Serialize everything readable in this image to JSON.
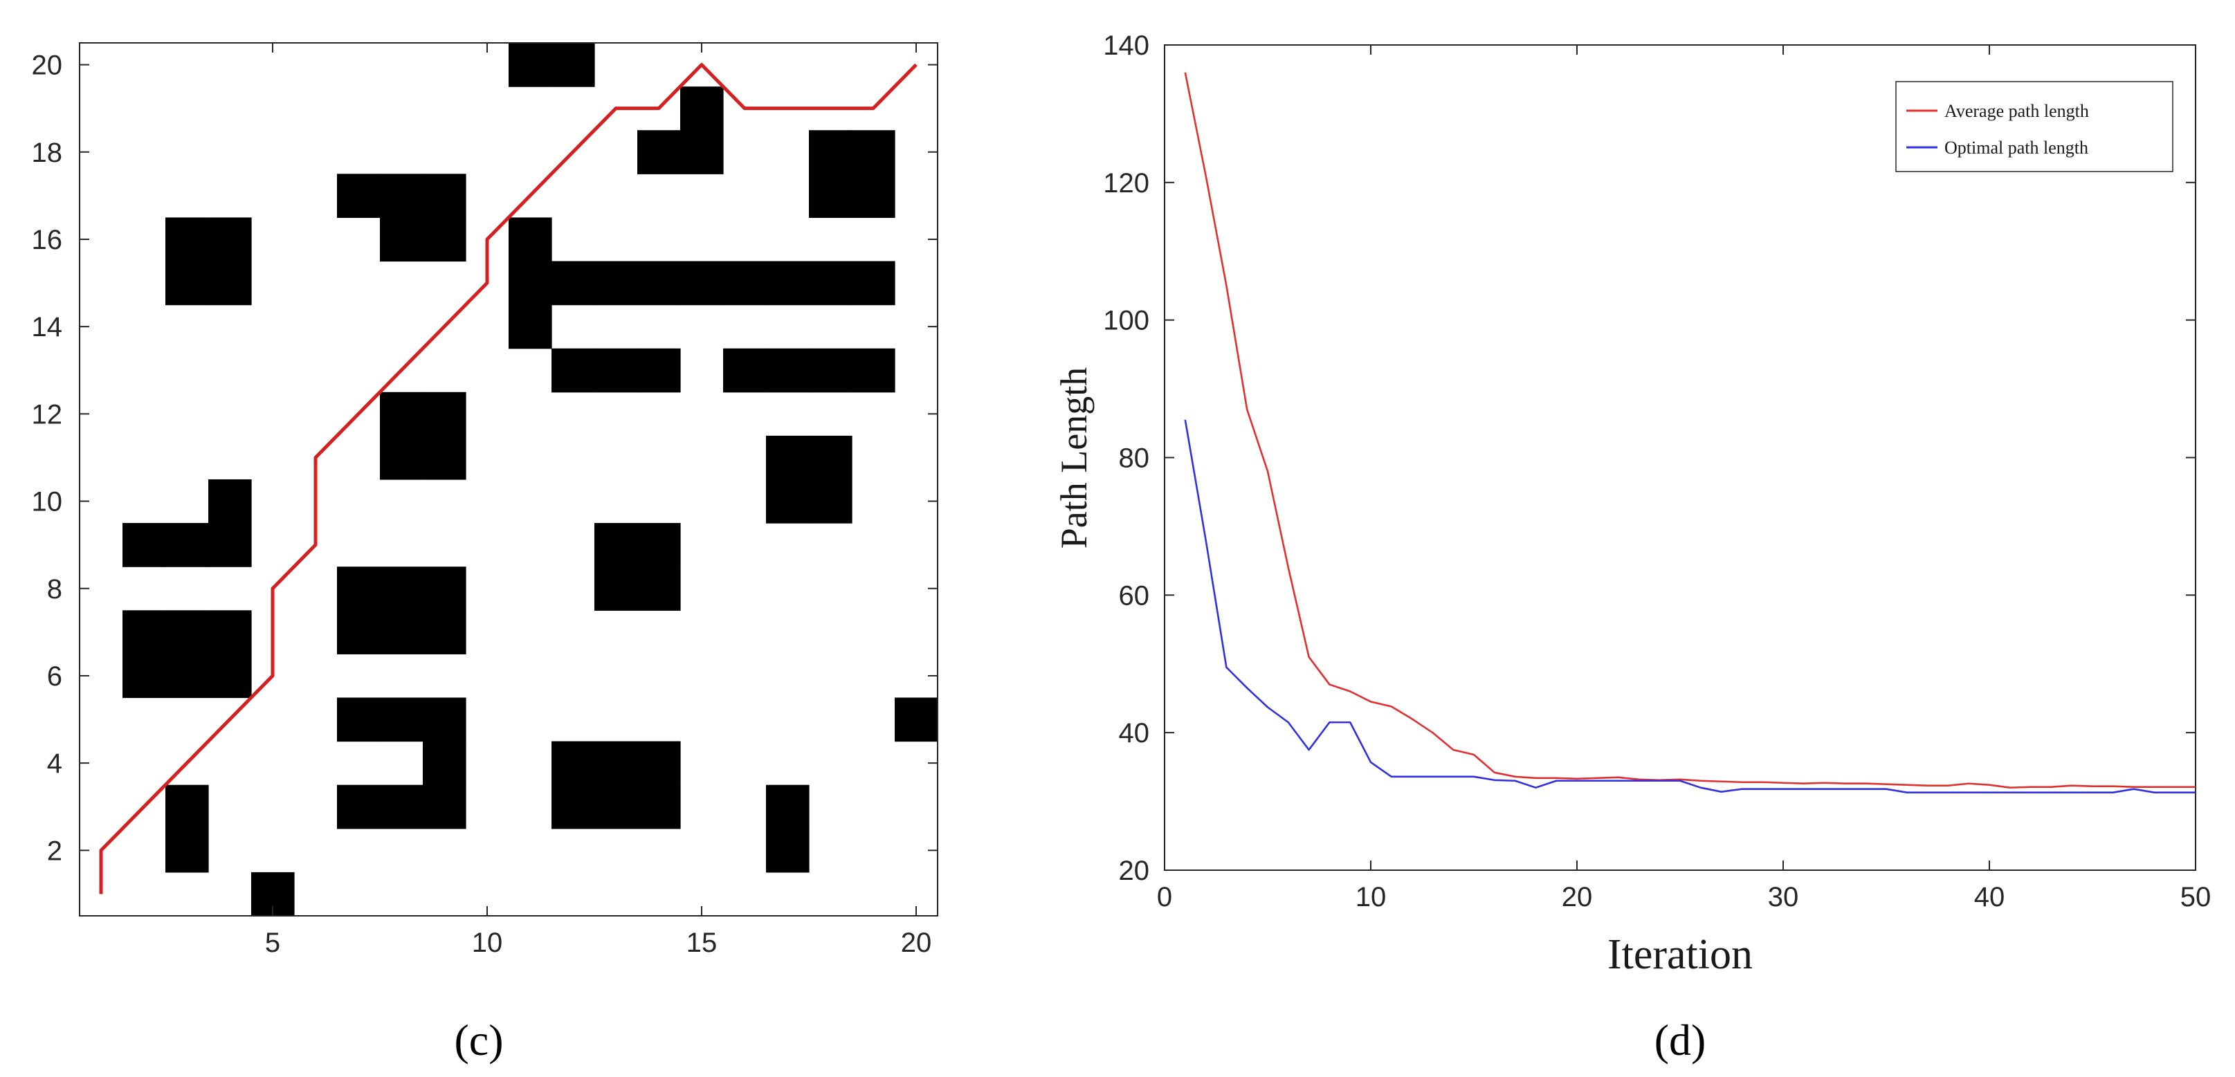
{
  "chart_data": [
    {
      "type": "grid-map",
      "panel_label": "(c)",
      "xlim": [
        0.5,
        20.5
      ],
      "ylim": [
        0.5,
        20.5
      ],
      "xticks": [
        5,
        10,
        15,
        20
      ],
      "yticks": [
        2,
        4,
        6,
        8,
        10,
        12,
        14,
        16,
        18,
        20
      ],
      "obstacle_cells": [
        [
          5,
          1
        ],
        [
          3,
          2
        ],
        [
          3,
          3
        ],
        [
          17,
          2
        ],
        [
          17,
          3
        ],
        [
          7,
          3
        ],
        [
          8,
          3
        ],
        [
          9,
          3
        ],
        [
          9,
          4
        ],
        [
          7,
          5
        ],
        [
          8,
          5
        ],
        [
          9,
          5
        ],
        [
          12,
          3
        ],
        [
          13,
          3
        ],
        [
          14,
          3
        ],
        [
          12,
          4
        ],
        [
          13,
          4
        ],
        [
          14,
          4
        ],
        [
          20,
          5
        ],
        [
          2,
          6
        ],
        [
          3,
          6
        ],
        [
          4,
          6
        ],
        [
          2,
          7
        ],
        [
          3,
          7
        ],
        [
          4,
          7
        ],
        [
          7,
          7
        ],
        [
          8,
          7
        ],
        [
          9,
          7
        ],
        [
          7,
          8
        ],
        [
          8,
          8
        ],
        [
          9,
          8
        ],
        [
          13,
          8
        ],
        [
          14,
          8
        ],
        [
          13,
          9
        ],
        [
          14,
          9
        ],
        [
          2,
          9
        ],
        [
          3,
          9
        ],
        [
          4,
          9
        ],
        [
          4,
          10
        ],
        [
          17,
          10
        ],
        [
          18,
          10
        ],
        [
          17,
          11
        ],
        [
          18,
          11
        ],
        [
          8,
          11
        ],
        [
          9,
          11
        ],
        [
          8,
          12
        ],
        [
          9,
          12
        ],
        [
          12,
          13
        ],
        [
          13,
          13
        ],
        [
          14,
          13
        ],
        [
          16,
          13
        ],
        [
          17,
          13
        ],
        [
          18,
          13
        ],
        [
          19,
          13
        ],
        [
          11,
          14
        ],
        [
          11,
          15
        ],
        [
          11,
          16
        ],
        [
          12,
          15
        ],
        [
          13,
          15
        ],
        [
          14,
          15
        ],
        [
          15,
          15
        ],
        [
          16,
          15
        ],
        [
          17,
          15
        ],
        [
          18,
          15
        ],
        [
          19,
          15
        ],
        [
          3,
          15
        ],
        [
          4,
          15
        ],
        [
          3,
          16
        ],
        [
          4,
          16
        ],
        [
          8,
          16
        ],
        [
          9,
          16
        ],
        [
          7,
          17
        ],
        [
          8,
          17
        ],
        [
          9,
          17
        ],
        [
          14,
          18
        ],
        [
          15,
          18
        ],
        [
          15,
          19
        ],
        [
          18,
          17
        ],
        [
          19,
          17
        ],
        [
          18,
          18
        ],
        [
          19,
          18
        ],
        [
          11,
          20
        ],
        [
          12,
          20
        ]
      ],
      "path": [
        [
          1,
          1
        ],
        [
          1,
          2
        ],
        [
          5,
          6
        ],
        [
          5,
          8
        ],
        [
          6,
          9
        ],
        [
          6,
          11
        ],
        [
          10,
          15
        ],
        [
          10,
          16
        ],
        [
          13,
          19
        ],
        [
          14,
          19
        ],
        [
          15,
          20
        ],
        [
          16,
          19
        ],
        [
          19,
          19
        ],
        [
          20,
          20
        ]
      ],
      "path_color": "#d42020",
      "obstacle_color": "#000000"
    },
    {
      "type": "line",
      "panel_label": "(d)",
      "xlabel": "Iteration",
      "ylabel": "Path Length",
      "xlim": [
        0,
        50
      ],
      "ylim": [
        20,
        140
      ],
      "xticks": [
        0,
        10,
        20,
        30,
        40,
        50
      ],
      "yticks": [
        20,
        40,
        60,
        80,
        100,
        120,
        140
      ],
      "legend_position": "top-right",
      "x": [
        1,
        2,
        3,
        4,
        5,
        6,
        7,
        8,
        9,
        10,
        11,
        12,
        13,
        14,
        15,
        16,
        17,
        18,
        19,
        20,
        21,
        22,
        23,
        24,
        25,
        26,
        27,
        28,
        29,
        30,
        31,
        32,
        33,
        34,
        35,
        36,
        37,
        38,
        39,
        40,
        41,
        42,
        43,
        44,
        45,
        46,
        47,
        48,
        49,
        50
      ],
      "series": [
        {
          "name": "Average path length",
          "color": "#e03030",
          "values": [
            136,
            121,
            105,
            87,
            78,
            64,
            51,
            47,
            46,
            44.5,
            43.8,
            42,
            40,
            37.5,
            36.8,
            34.2,
            33.6,
            33.4,
            33.4,
            33.3,
            33.4,
            33.5,
            33.2,
            33.1,
            33.2,
            33.0,
            32.9,
            32.8,
            32.8,
            32.7,
            32.6,
            32.7,
            32.6,
            32.6,
            32.5,
            32.4,
            32.3,
            32.3,
            32.6,
            32.4,
            32.0,
            32.1,
            32.1,
            32.3,
            32.2,
            32.2,
            32.1,
            32.1,
            32.1,
            32.1
          ]
        },
        {
          "name": "Optimal path length",
          "color": "#3030e0",
          "values": [
            85.5,
            68,
            49.5,
            46.5,
            43.7,
            41.5,
            37.5,
            41.5,
            41.5,
            35.7,
            33.6,
            33.6,
            33.6,
            33.6,
            33.6,
            33.1,
            33.0,
            32.0,
            33.0,
            33.0,
            33.0,
            33.0,
            33.0,
            33.0,
            33.0,
            32.0,
            31.4,
            31.8,
            31.8,
            31.8,
            31.8,
            31.8,
            31.8,
            31.8,
            31.8,
            31.3,
            31.3,
            31.3,
            31.3,
            31.3,
            31.3,
            31.3,
            31.3,
            31.3,
            31.3,
            31.3,
            31.8,
            31.3,
            31.3,
            31.3
          ]
        }
      ]
    }
  ]
}
